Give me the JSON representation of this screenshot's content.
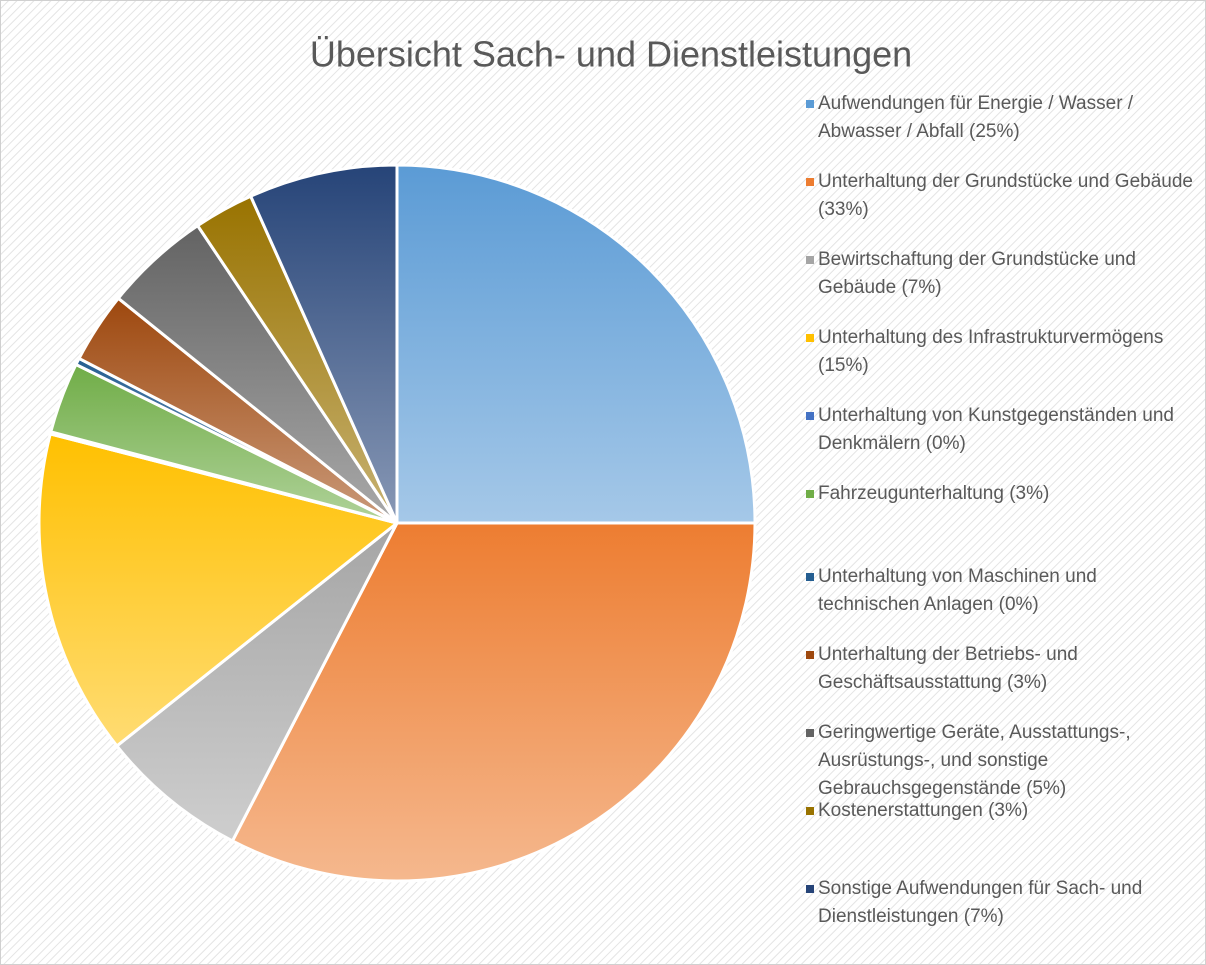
{
  "chart_data": {
    "type": "pie",
    "title": "Übersicht Sach- und Dienstleistungen",
    "categories": [
      "Aufwendungen für Energie / Wasser / Abwasser / Abfall (25%)",
      "Unterhaltung der Grundstücke und Gebäude (33%)",
      "Bewirtschaftung der Grundstücke und Gebäude (7%)",
      "Unterhaltung des Infrastrukturvermögens (15%)",
      "Unterhaltung von Kunstgegenständen und Denkmälern (0%)",
      "Fahrzeugunterhaltung (3%)",
      "Unterhaltung von Maschinen und technischen Anlagen (0%)",
      "Unterhaltung der Betriebs- und Geschäftsausstattung (3%)",
      "Geringwertige Geräte, Ausstattungs-, Ausrüstungs-, und sonstige Gebrauchsgegenstände (5%)",
      "Kostenerstattungen (3%)",
      "Sonstige Aufwendungen für Sach- und Dienstleistungen (7%)"
    ],
    "values": [
      25,
      32.6,
      6.7,
      14.7,
      0.1,
      3.2,
      0.3,
      3.2,
      4.8,
      2.7,
      6.7
    ],
    "colors": [
      "#5b9bd5",
      "#ed7d31",
      "#a5a5a5",
      "#ffc000",
      "#4472c4",
      "#70ad47",
      "#255e91",
      "#9e480e",
      "#636363",
      "#997300",
      "#264478"
    ],
    "legend": "right"
  }
}
